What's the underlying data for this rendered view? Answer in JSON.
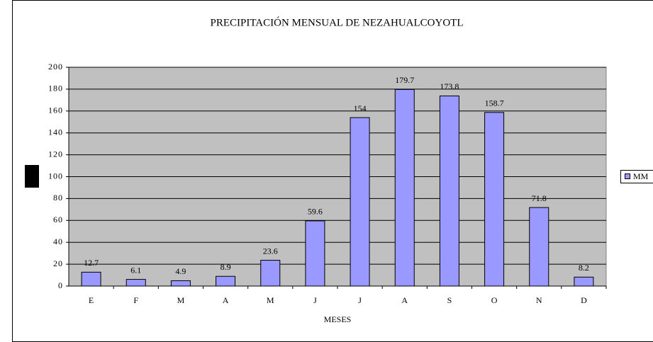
{
  "chart_data": {
    "type": "bar",
    "title": "PRECIPITACIÓN MENSUAL DE NEZAHUALCOYOTL",
    "x_label": "MESES",
    "categories": [
      "E",
      "F",
      "M",
      "A",
      "M",
      "J",
      "J",
      "A",
      "S",
      "O",
      "N",
      "D"
    ],
    "series": [
      {
        "name": "MM",
        "color": "#9999ff",
        "values": [
          12.7,
          6.1,
          4.9,
          8.9,
          23.6,
          59.6,
          154,
          179.7,
          173.8,
          158.7,
          71.8,
          8.2
        ]
      }
    ],
    "ylim": [
      0,
      200
    ],
    "yticks": [
      0,
      20,
      40,
      60,
      80,
      100,
      120,
      140,
      160,
      180,
      200
    ],
    "grid": true,
    "legend": "right"
  }
}
